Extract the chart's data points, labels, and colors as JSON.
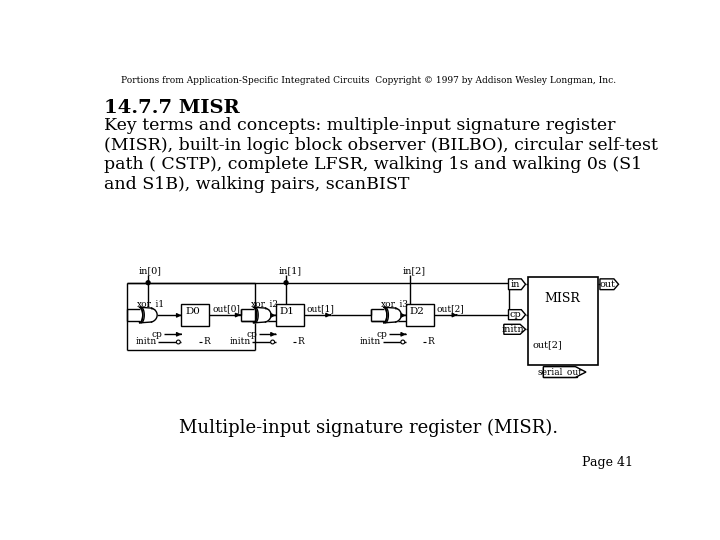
{
  "copyright_text": "Portions from Application-Specific Integrated Circuits  Copyright © 1997 by Addison Wesley Longman, Inc.",
  "title": "14.7.7 MISR",
  "body_text": "Key terms and concepts: multiple-input signature register\n(MISR), built-in logic block observer (BILBO), circular self-test\npath ( CSTP), complete LFSR, walking 1s and walking 0s (S1\nand S1B), walking pairs, scanBIST",
  "caption": "Multiple-input signature register (MISR).",
  "page": "Page 41",
  "bg_color": "#ffffff",
  "text_color": "#000000"
}
